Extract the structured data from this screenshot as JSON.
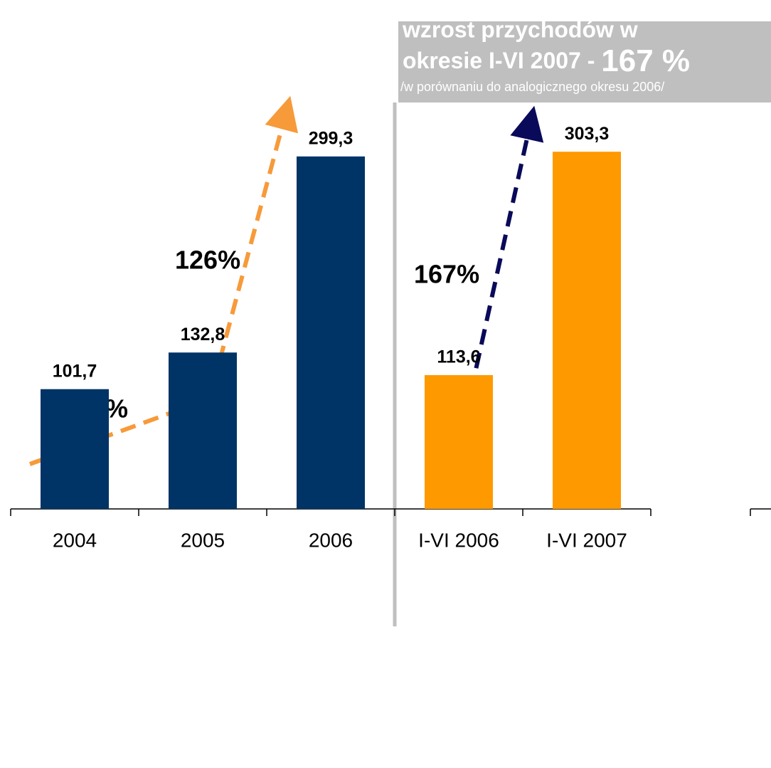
{
  "chart_data": {
    "type": "bar",
    "categories": [
      "2004",
      "2005",
      "2006",
      "I-VI 2006",
      "I-VI 2007"
    ],
    "values": [
      101.7,
      132.8,
      299.3,
      113.6,
      303.3
    ],
    "value_labels": [
      "101,7",
      "132,8",
      "299,3",
      "113,6",
      "303,3"
    ],
    "colors": [
      "#003366",
      "#003366",
      "#003366",
      "#ff9900",
      "#ff9900"
    ],
    "ylim": [
      0,
      330
    ],
    "annotations": [
      "31%",
      "126%",
      "167%"
    ],
    "box_title": [
      "wzrost przychodów w",
      "okresie I-VI  2007  -"
    ],
    "box_highlight": "167 %",
    "box_note": "/w porównaniu do analogicznego okresu 2006/"
  }
}
